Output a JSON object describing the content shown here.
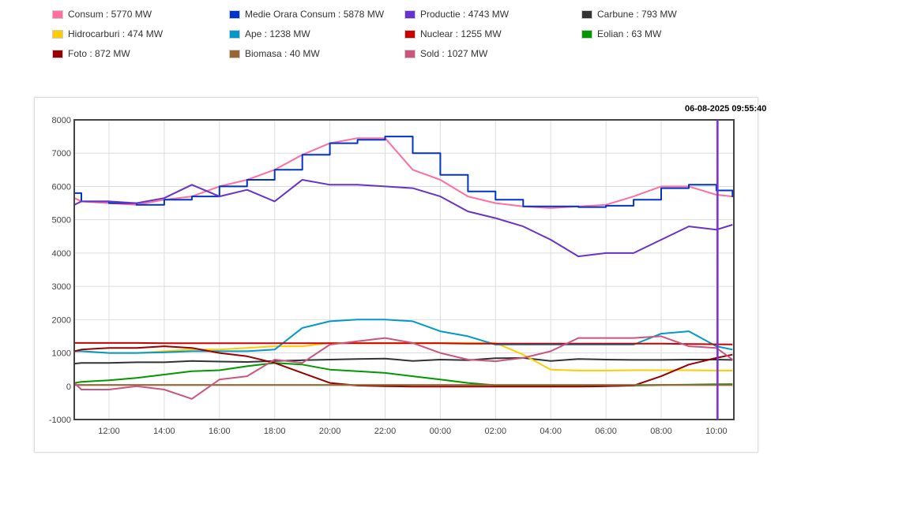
{
  "legend": [
    {
      "label": "Consum : 5770 MW",
      "color": "#ff6f9f"
    },
    {
      "label": "Medie Orara Consum : 5878 MW",
      "color": "#0033cc"
    },
    {
      "label": "Productie : 4743 MW",
      "color": "#6633cc"
    },
    {
      "label": "Carbune : 793 MW",
      "color": "#333333"
    },
    {
      "label": "Hidrocarburi : 474 MW",
      "color": "#ffcc00"
    },
    {
      "label": "Ape : 1238 MW",
      "color": "#0099cc"
    },
    {
      "label": "Nuclear : 1255 MW",
      "color": "#cc0000"
    },
    {
      "label": "Eolian : 63 MW",
      "color": "#009900"
    },
    {
      "label": "Foto : 872 MW",
      "color": "#990000"
    },
    {
      "label": "Biomasa : 40 MW",
      "color": "#996633"
    },
    {
      "label": "Sold : 1027 MW",
      "color": "#cc5580"
    }
  ],
  "timestamp": "06-08-2025 09:55:40",
  "chart_data": {
    "type": "line",
    "ylim": [
      -1000,
      8000
    ],
    "yticks": [
      "8000",
      "7000",
      "6000",
      "5000",
      "4000",
      "3000",
      "2000",
      "1000",
      "0",
      "-1000"
    ],
    "xticks": [
      "12:00",
      "14:00",
      "16:00",
      "18:00",
      "20:00",
      "22:00",
      "00:00",
      "02:00",
      "04:00",
      "06:00",
      "08:00",
      "10:00"
    ],
    "grid": true,
    "cursor_color": "#7733cc",
    "x": [
      "05 10:45",
      "05 11:00",
      "05 12:00",
      "05 13:00",
      "05 14:00",
      "05 15:00",
      "05 16:00",
      "05 17:00",
      "05 18:00",
      "05 19:00",
      "05 20:00",
      "05 21:00",
      "05 22:00",
      "05 23:00",
      "06 00:00",
      "06 01:00",
      "06 02:00",
      "06 03:00",
      "06 04:00",
      "06 05:00",
      "06 06:00",
      "06 07:00",
      "06 08:00",
      "06 09:00",
      "06 10:00",
      "06 10:35"
    ],
    "series": [
      {
        "name": "Consum",
        "color": "#ff6f9f",
        "values": [
          5650,
          5550,
          5500,
          5450,
          5600,
          5700,
          6000,
          6200,
          6500,
          6950,
          7300,
          7450,
          7450,
          6500,
          6200,
          5700,
          5500,
          5400,
          5350,
          5400,
          5450,
          5700,
          6000,
          6000,
          5750,
          5700
        ]
      },
      {
        "name": "Medie Orara Consum",
        "color": "#0033cc",
        "step": true,
        "values": [
          5800,
          5550,
          5500,
          5450,
          5600,
          5700,
          6000,
          6200,
          6500,
          6950,
          7300,
          7400,
          7500,
          7000,
          6350,
          5850,
          5600,
          5400,
          5400,
          5380,
          5420,
          5600,
          5950,
          6050,
          5880,
          5680
        ]
      },
      {
        "name": "Productie",
        "color": "#6633cc",
        "values": [
          5450,
          5550,
          5550,
          5500,
          5650,
          6050,
          5700,
          5900,
          5550,
          6200,
          6050,
          6050,
          6000,
          5950,
          5700,
          5250,
          5050,
          4800,
          4400,
          3900,
          4000,
          4000,
          4400,
          4800,
          4700,
          4850
        ]
      },
      {
        "name": "Carbune",
        "color": "#333333",
        "values": [
          680,
          700,
          700,
          720,
          720,
          760,
          740,
          730,
          760,
          780,
          800,
          820,
          830,
          760,
          800,
          780,
          840,
          850,
          760,
          820,
          800,
          790,
          790,
          800,
          800,
          790
        ]
      },
      {
        "name": "Hidrocarburi",
        "color": "#ffcc00",
        "values": [
          1050,
          1050,
          1000,
          1000,
          1050,
          1100,
          1100,
          1150,
          1200,
          1200,
          1300,
          1300,
          1300,
          1300,
          1300,
          1300,
          1300,
          950,
          500,
          470,
          470,
          480,
          480,
          480,
          470,
          470
        ]
      },
      {
        "name": "Ape",
        "color": "#0099cc",
        "values": [
          1050,
          1050,
          1000,
          1000,
          1020,
          1050,
          1050,
          1050,
          1100,
          1750,
          1950,
          2000,
          2000,
          1950,
          1650,
          1500,
          1250,
          1250,
          1250,
          1250,
          1250,
          1250,
          1580,
          1650,
          1200,
          1100
        ]
      },
      {
        "name": "Nuclear",
        "color": "#cc0000",
        "values": [
          1300,
          1300,
          1300,
          1300,
          1290,
          1290,
          1290,
          1290,
          1290,
          1290,
          1290,
          1290,
          1290,
          1290,
          1290,
          1280,
          1280,
          1280,
          1280,
          1280,
          1280,
          1280,
          1280,
          1270,
          1260,
          1255
        ]
      },
      {
        "name": "Eolian",
        "color": "#009900",
        "values": [
          100,
          130,
          180,
          250,
          350,
          450,
          480,
          600,
          700,
          650,
          500,
          450,
          400,
          300,
          200,
          100,
          30,
          10,
          10,
          10,
          10,
          20,
          40,
          50,
          60,
          63
        ]
      },
      {
        "name": "Foto",
        "color": "#990000",
        "values": [
          1050,
          1100,
          1150,
          1150,
          1200,
          1150,
          1000,
          900,
          700,
          400,
          100,
          20,
          0,
          -10,
          -10,
          -10,
          -10,
          -10,
          -10,
          -10,
          0,
          20,
          300,
          650,
          850,
          950
        ]
      },
      {
        "name": "Biomasa",
        "color": "#996633",
        "values": [
          40,
          40,
          40,
          40,
          40,
          40,
          40,
          40,
          40,
          40,
          40,
          40,
          40,
          40,
          40,
          40,
          40,
          40,
          40,
          40,
          40,
          40,
          40,
          40,
          40,
          40
        ]
      },
      {
        "name": "Sold",
        "color": "#cc5580",
        "values": [
          100,
          -100,
          -100,
          0,
          -100,
          -380,
          200,
          300,
          800,
          700,
          1250,
          1350,
          1450,
          1300,
          1000,
          800,
          750,
          850,
          1050,
          1450,
          1450,
          1450,
          1500,
          1200,
          1150,
          800
        ]
      }
    ]
  }
}
